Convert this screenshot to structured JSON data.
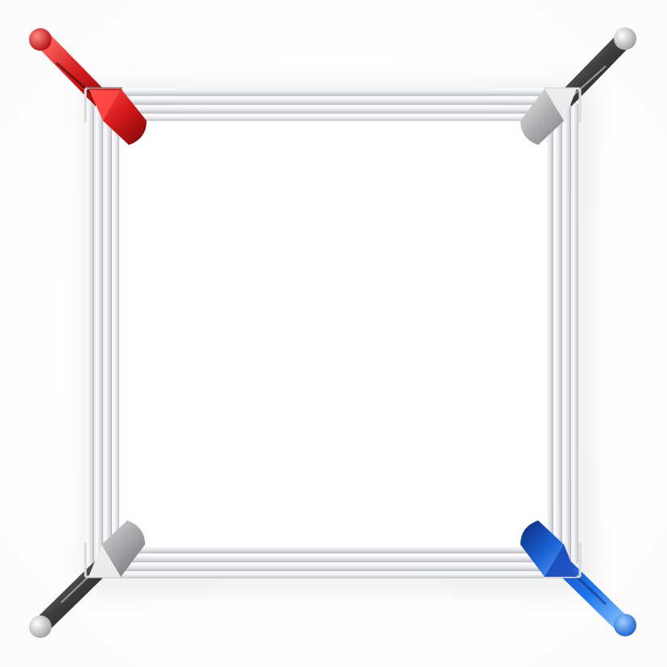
{
  "image": {
    "subject": "boxing ring",
    "colors": {
      "background": "#ffffff",
      "rope": "#e9eaec",
      "rope_shadow": "#b9bcc1",
      "red_corner": "#d8191b",
      "blue_corner": "#1b63d6",
      "neutral_corner": "#a9aaac",
      "turnbuckle_dark": "#3c3c3c"
    },
    "corners": [
      {
        "position": "top-left",
        "color": "red"
      },
      {
        "position": "top-right",
        "color": "neutral"
      },
      {
        "position": "bottom-left",
        "color": "neutral"
      },
      {
        "position": "bottom-right",
        "color": "blue"
      }
    ]
  }
}
